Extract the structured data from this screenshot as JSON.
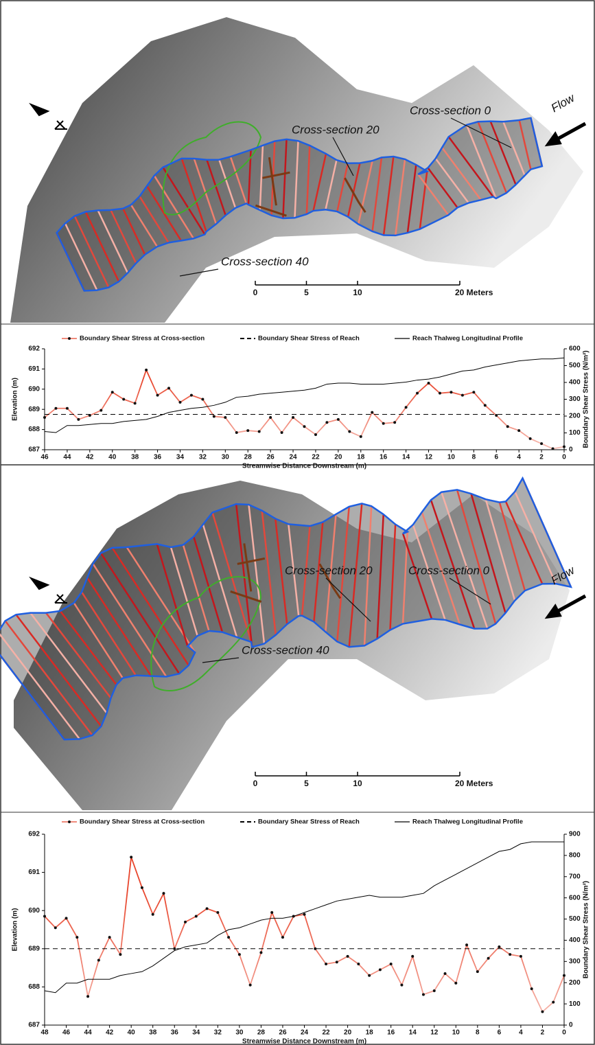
{
  "chart_data": [
    {
      "type": "line",
      "xlabel": "Streamwise Distance Downstream (m)",
      "ylabel": "Elevation (m)",
      "y2label": "Boundary Shear Stress (N/m²)",
      "x": [
        46,
        45,
        44,
        43,
        42,
        41,
        40,
        39,
        38,
        37,
        36,
        35,
        34,
        33,
        32,
        31,
        30,
        29,
        28,
        27,
        26,
        25,
        24,
        23,
        22,
        21,
        20,
        19,
        18,
        17,
        16,
        15,
        14,
        13,
        12,
        11,
        10,
        9,
        8,
        7,
        6,
        5,
        4,
        3,
        2,
        1,
        0
      ],
      "xlim": [
        46,
        0
      ],
      "xticks": [
        46,
        44,
        42,
        40,
        38,
        36,
        34,
        32,
        30,
        28,
        26,
        24,
        22,
        20,
        18,
        16,
        14,
        12,
        10,
        8,
        6,
        4,
        2,
        0
      ],
      "ylim": [
        687,
        692
      ],
      "yticks": [
        687,
        688,
        689,
        690,
        691,
        692
      ],
      "y2lim": [
        0,
        600
      ],
      "y2ticks": [
        0,
        100,
        200,
        300,
        400,
        500,
        600
      ],
      "series": [
        {
          "name": "Boundary Shear Stress at Cross-section",
          "color": "#e8452c",
          "axis": "y2",
          "marker": "circle",
          "values": [
            192,
            246,
            246,
            180,
            204,
            234,
            342,
            300,
            276,
            474,
            324,
            366,
            282,
            324,
            300,
            198,
            192,
            102,
            114,
            108,
            192,
            102,
            192,
            138,
            90,
            162,
            180,
            108,
            78,
            222,
            156,
            162,
            252,
            336,
            396,
            336,
            342,
            324,
            342,
            264,
            204,
            138,
            114,
            66,
            36,
            6,
            18
          ]
        },
        {
          "name": "Boundary Shear Stress of Reach",
          "color": "#000000",
          "axis": "y2",
          "style": "dashed",
          "x": [
            46,
            0
          ],
          "values": [
            210,
            210
          ]
        },
        {
          "name": "Reach Thalweg Longitudinal Profile",
          "color": "#000000",
          "values": [
            687.9,
            687.85,
            688.2,
            688.2,
            688.25,
            688.3,
            688.3,
            688.4,
            688.45,
            688.5,
            688.65,
            688.85,
            688.95,
            689.05,
            689.1,
            689.2,
            689.35,
            689.6,
            689.65,
            689.75,
            689.8,
            689.85,
            689.9,
            689.95,
            690.05,
            690.25,
            690.3,
            690.3,
            690.25,
            690.25,
            690.25,
            690.3,
            690.35,
            690.45,
            690.5,
            690.6,
            690.75,
            690.9,
            690.95,
            691.1,
            691.2,
            691.3,
            691.4,
            691.45,
            691.5,
            691.5,
            691.55
          ]
        }
      ]
    },
    {
      "type": "line",
      "xlabel": "Streamwise Distance Downstream (m)",
      "ylabel": "Elevation (m)",
      "y2label": "Boundary Shear Stress (N/m²)",
      "x": [
        48,
        47,
        46,
        45,
        44,
        43,
        42,
        41,
        40,
        39,
        38,
        37,
        36,
        35,
        34,
        33,
        32,
        31,
        30,
        29,
        28,
        27,
        26,
        25,
        24,
        23,
        22,
        21,
        20,
        19,
        18,
        17,
        16,
        15,
        14,
        13,
        12,
        11,
        10,
        9,
        8,
        7,
        6,
        5,
        4,
        3,
        2,
        1,
        0
      ],
      "xlim": [
        48,
        0
      ],
      "xticks": [
        48,
        46,
        44,
        42,
        40,
        38,
        36,
        34,
        32,
        30,
        28,
        26,
        24,
        22,
        20,
        18,
        16,
        14,
        12,
        10,
        8,
        6,
        4,
        2,
        0
      ],
      "ylim": [
        687,
        692
      ],
      "yticks": [
        687,
        688,
        689,
        690,
        691,
        692
      ],
      "y2lim": [
        0,
        900
      ],
      "y2ticks": [
        0,
        100,
        200,
        300,
        400,
        500,
        600,
        700,
        800,
        900
      ],
      "series": [
        {
          "name": "Boundary Shear Stress at Cross-section",
          "color": "#e8452c",
          "axis": "y2",
          "marker": "circle",
          "values": [
            513,
            459,
            504,
            414,
            135,
            306,
            414,
            333,
            792,
            648,
            522,
            621,
            360,
            486,
            513,
            549,
            531,
            414,
            333,
            189,
            342,
            531,
            414,
            513,
            522,
            360,
            288,
            297,
            324,
            288,
            234,
            261,
            288,
            189,
            324,
            144,
            162,
            243,
            198,
            378,
            252,
            315,
            369,
            333,
            324,
            171,
            63,
            108,
            234
          ]
        },
        {
          "name": "Boundary Shear Stress of Reach",
          "color": "#000000",
          "axis": "y2",
          "style": "dashed",
          "x": [
            48,
            0
          ],
          "values": [
            360,
            360
          ]
        },
        {
          "name": "Reach Thalweg Longitudinal Profile",
          "color": "#000000",
          "values": [
            687.9,
            687.85,
            688.1,
            688.1,
            688.2,
            688.2,
            688.2,
            688.3,
            688.35,
            688.4,
            688.55,
            688.75,
            688.95,
            689.05,
            689.1,
            689.15,
            689.35,
            689.5,
            689.55,
            689.65,
            689.75,
            689.8,
            689.8,
            689.85,
            689.95,
            690.05,
            690.15,
            690.25,
            690.3,
            690.35,
            690.4,
            690.35,
            690.35,
            690.35,
            690.4,
            690.45,
            690.65,
            690.8,
            690.95,
            691.1,
            691.25,
            691.4,
            691.55,
            691.6,
            691.75,
            691.8,
            691.8,
            691.8,
            691.8
          ]
        }
      ]
    }
  ],
  "maps": [
    {
      "cross_sections": [
        "Cross-section 0",
        "Cross-section 20",
        "Cross-section 40"
      ],
      "flow": "Flow",
      "scale_ticks": [
        0,
        5,
        10,
        {
          "value": 20,
          "label": "20 Meters"
        }
      ]
    },
    {
      "cross_sections": [
        "Cross-section 0",
        "Cross-section 20",
        "Cross-section 40"
      ],
      "flow": "Flow",
      "scale_ticks": [
        0,
        5,
        10,
        {
          "value": 20,
          "label": "20 Meters"
        }
      ]
    }
  ]
}
